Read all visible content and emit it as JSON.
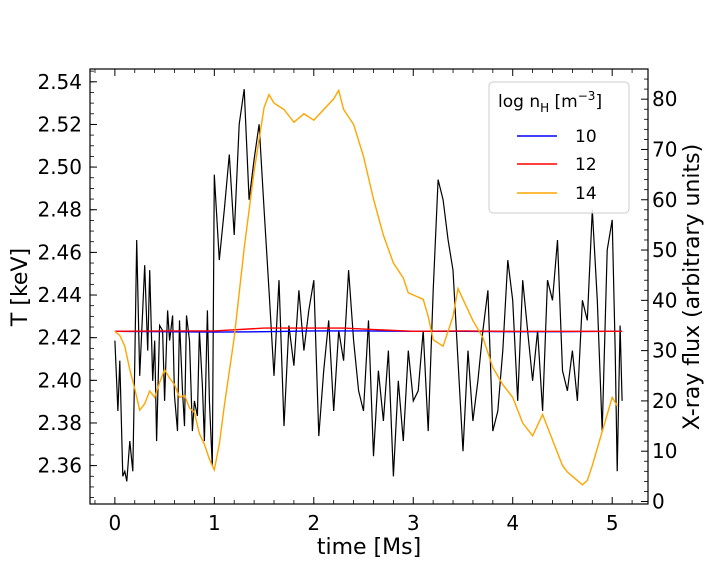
{
  "chart_data": {
    "type": "line",
    "xlabel": "time [Ms]",
    "ylabel_left": "T [keV]",
    "ylabel_right": "X-ray flux (arbitrary units)",
    "xlim": [
      -0.25,
      5.36
    ],
    "ylim_left": [
      2.342,
      2.546
    ],
    "ylim_right": [
      -0.5,
      86
    ],
    "x_ticks": [
      0,
      1,
      2,
      3,
      4,
      5
    ],
    "y_ticks_left": [
      "2.36",
      "2.38",
      "2.40",
      "2.42",
      "2.44",
      "2.46",
      "2.48",
      "2.50",
      "2.52",
      "2.54"
    ],
    "y_ticks_right": [
      0,
      10,
      20,
      30,
      40,
      50,
      60,
      70,
      80
    ],
    "grid": false,
    "legend_placement": "top-right",
    "legend": {
      "title_text": "log n",
      "title_sub": "H",
      "title_unit_open": " [m",
      "title_sup": "−3",
      "title_unit_close": "]"
    },
    "series": [
      {
        "name": "10",
        "axis": "left",
        "color": "#0000ff",
        "x": [
          0,
          0.5,
          1.0,
          1.5,
          2.0,
          2.5,
          3.0,
          3.5,
          4.0,
          4.5,
          5.0,
          5.1
        ],
        "y": [
          2.423,
          2.4228,
          2.4226,
          2.4228,
          2.4232,
          2.4232,
          2.423,
          2.423,
          2.4228,
          2.4228,
          2.423,
          2.423
        ]
      },
      {
        "name": "12",
        "axis": "left",
        "color": "#ff0000",
        "x": [
          0,
          0.5,
          1.0,
          1.5,
          2.0,
          2.3,
          2.5,
          3.0,
          3.5,
          4.0,
          4.5,
          5.0,
          5.1
        ],
        "y": [
          2.423,
          2.4232,
          2.4232,
          2.4245,
          2.4245,
          2.4245,
          2.424,
          2.423,
          2.4232,
          2.423,
          2.423,
          2.423,
          2.423
        ]
      },
      {
        "name": "14",
        "axis": "left",
        "color": "#ffa500",
        "x": [
          0,
          0.05,
          0.1,
          0.15,
          0.2,
          0.25,
          0.3,
          0.35,
          0.4,
          0.45,
          0.5,
          0.55,
          0.6,
          0.65,
          0.7,
          0.75,
          0.8,
          0.85,
          0.9,
          0.95,
          1.0,
          1.05,
          1.1,
          1.2,
          1.3,
          1.4,
          1.5,
          1.55,
          1.6,
          1.7,
          1.8,
          1.9,
          2.0,
          2.1,
          2.2,
          2.25,
          2.3,
          2.4,
          2.5,
          2.6,
          2.7,
          2.8,
          2.9,
          2.95,
          3.0,
          3.1,
          3.15,
          3.2,
          3.3,
          3.4,
          3.45,
          3.5,
          3.6,
          3.7,
          3.8,
          3.9,
          4.0,
          4.1,
          4.2,
          4.3,
          4.4,
          4.5,
          4.55,
          4.6,
          4.7,
          4.75,
          4.8,
          4.9,
          5.0,
          5.05
        ],
        "y": [
          2.423,
          2.421,
          2.416,
          2.405,
          2.396,
          2.386,
          2.389,
          2.395,
          2.392,
          2.399,
          2.405,
          2.401,
          2.398,
          2.392,
          2.393,
          2.387,
          2.385,
          2.375,
          2.37,
          2.363,
          2.358,
          2.37,
          2.388,
          2.42,
          2.462,
          2.498,
          2.528,
          2.534,
          2.53,
          2.527,
          2.521,
          2.525,
          2.522,
          2.527,
          2.532,
          2.536,
          2.527,
          2.52,
          2.505,
          2.485,
          2.468,
          2.455,
          2.448,
          2.441,
          2.44,
          2.438,
          2.43,
          2.419,
          2.416,
          2.43,
          2.443,
          2.438,
          2.428,
          2.42,
          2.406,
          2.398,
          2.392,
          2.38,
          2.374,
          2.384,
          2.372,
          2.36,
          2.357,
          2.355,
          2.351,
          2.353,
          2.36,
          2.376,
          2.392,
          2.388
        ]
      }
    ],
    "flux_series": {
      "axis": "right",
      "color": "#000000",
      "x": [
        0,
        0.03,
        0.05,
        0.08,
        0.1,
        0.12,
        0.15,
        0.18,
        0.2,
        0.22,
        0.25,
        0.28,
        0.3,
        0.33,
        0.35,
        0.38,
        0.4,
        0.42,
        0.45,
        0.48,
        0.5,
        0.53,
        0.55,
        0.58,
        0.6,
        0.63,
        0.65,
        0.68,
        0.7,
        0.72,
        0.75,
        0.78,
        0.8,
        0.83,
        0.85,
        0.88,
        0.9,
        0.93,
        0.95,
        0.98,
        1.0,
        1.05,
        1.1,
        1.15,
        1.2,
        1.25,
        1.3,
        1.35,
        1.4,
        1.45,
        1.5,
        1.55,
        1.6,
        1.65,
        1.7,
        1.75,
        1.8,
        1.85,
        1.9,
        1.95,
        2.0,
        2.05,
        2.1,
        2.15,
        2.2,
        2.25,
        2.3,
        2.35,
        2.4,
        2.45,
        2.5,
        2.55,
        2.6,
        2.65,
        2.7,
        2.75,
        2.8,
        2.85,
        2.9,
        2.95,
        3.0,
        3.05,
        3.1,
        3.15,
        3.2,
        3.25,
        3.3,
        3.35,
        3.4,
        3.45,
        3.5,
        3.55,
        3.6,
        3.65,
        3.7,
        3.75,
        3.8,
        3.85,
        3.9,
        3.95,
        4.0,
        4.05,
        4.1,
        4.15,
        4.2,
        4.25,
        4.3,
        4.35,
        4.4,
        4.45,
        4.5,
        4.55,
        4.6,
        4.65,
        4.7,
        4.75,
        4.8,
        4.85,
        4.9,
        4.95,
        5.0,
        5.03,
        5.05,
        5.08,
        5.1
      ],
      "y": [
        32,
        18,
        28,
        5,
        6,
        4,
        12,
        6,
        28,
        52,
        25,
        38,
        47,
        30,
        46,
        24,
        32,
        12,
        35,
        34,
        20,
        38,
        32,
        37,
        21,
        14,
        36,
        22,
        15,
        37,
        32,
        14,
        20,
        17,
        34,
        23,
        12,
        38,
        20,
        7,
        65,
        48,
        58,
        69,
        53,
        75,
        82,
        60,
        68,
        75,
        58,
        42,
        25,
        44,
        15,
        35,
        27,
        42,
        30,
        38,
        44,
        13,
        26,
        36,
        18,
        34,
        28,
        46,
        32,
        22,
        18,
        36,
        9,
        26,
        16,
        30,
        5,
        24,
        12,
        30,
        20,
        22,
        34,
        14,
        42,
        64,
        60,
        52,
        46,
        28,
        10,
        30,
        16,
        24,
        34,
        42,
        14,
        18,
        30,
        48,
        40,
        20,
        44,
        34,
        24,
        34,
        18,
        44,
        40,
        52,
        26,
        22,
        30,
        20,
        40,
        36,
        58,
        40,
        14,
        50,
        56,
        30,
        6,
        35,
        20
      ]
    }
  }
}
